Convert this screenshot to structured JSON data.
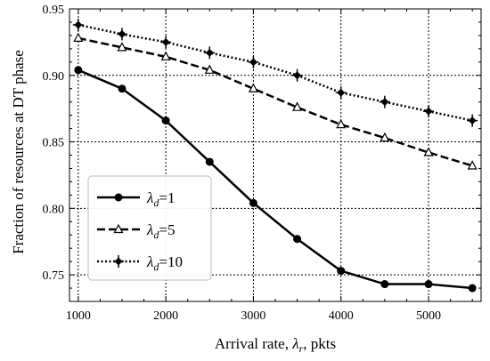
{
  "chart_data": {
    "type": "line",
    "title": "",
    "xlabel": "Arrival rate, λr, pkts",
    "xlabel_parts": {
      "prefix": "Arrival rate, ",
      "symbol": "λ",
      "subscript": "r",
      "suffix": ", pkts"
    },
    "ylabel": "Fraction of resources at DT phase",
    "xlim": [
      900,
      5600
    ],
    "ylim": [
      0.73,
      0.95
    ],
    "xticks": [
      1000,
      2000,
      3000,
      4000,
      5000
    ],
    "yticks": [
      0.75,
      0.8,
      0.85,
      0.9,
      0.95
    ],
    "ytick_labels": [
      "0.75",
      "0.80",
      "0.85",
      "0.90",
      "0.95"
    ],
    "grid": true,
    "legend_position": "lower-left",
    "x": [
      1000,
      1500,
      2000,
      2500,
      3000,
      3500,
      4000,
      4500,
      5000,
      5500
    ],
    "series": [
      {
        "name": "λd=1",
        "name_parts": {
          "symbol": "λ",
          "subscript": "d",
          "value": "=1"
        },
        "dash": "solid",
        "marker": "circle",
        "values": [
          0.904,
          0.89,
          0.866,
          0.835,
          0.804,
          0.777,
          0.753,
          0.743,
          0.743,
          0.74
        ]
      },
      {
        "name": "λd=5",
        "name_parts": {
          "symbol": "λ",
          "subscript": "d",
          "value": "=5"
        },
        "dash": "dashed",
        "marker": "triangle",
        "values": [
          0.928,
          0.921,
          0.914,
          0.904,
          0.89,
          0.876,
          0.863,
          0.853,
          0.842,
          0.832
        ]
      },
      {
        "name": "λd=10",
        "name_parts": {
          "symbol": "λ",
          "subscript": "d",
          "value": "=10"
        },
        "dash": "dotted",
        "marker": "plus-diamond",
        "values": [
          0.938,
          0.931,
          0.925,
          0.917,
          0.91,
          0.9,
          0.887,
          0.88,
          0.873,
          0.866
        ]
      }
    ]
  }
}
